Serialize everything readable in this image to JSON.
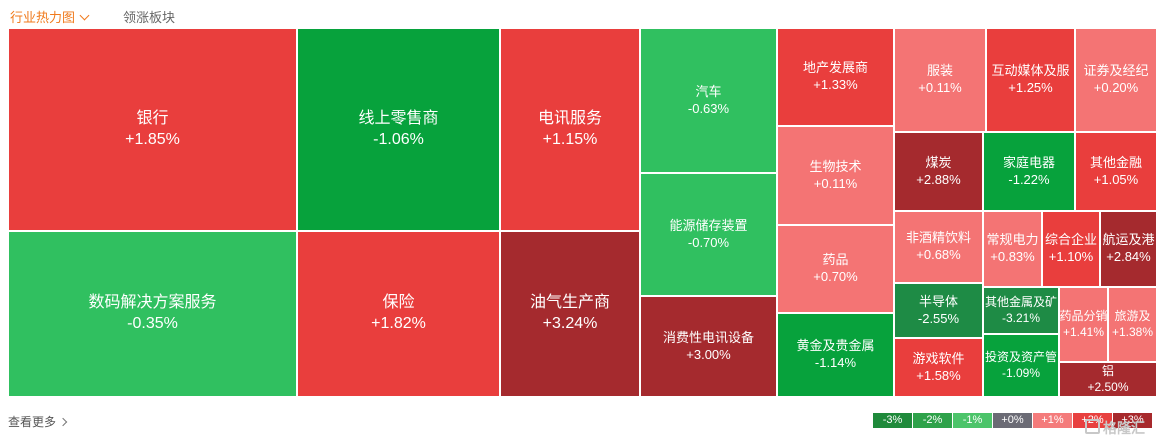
{
  "tabs": [
    {
      "label": "行业热力图",
      "active": true
    },
    {
      "label": "领涨板块",
      "active": false
    }
  ],
  "footer": {
    "more_label": "查看更多"
  },
  "legend": [
    {
      "label": "-3%",
      "color": "#1f8a3b"
    },
    {
      "label": "-2%",
      "color": "#2ea24a"
    },
    {
      "label": "-1%",
      "color": "#4cc46a"
    },
    {
      "label": "+0%",
      "color": "#6b6b75"
    },
    {
      "label": "+1%",
      "color": "#f47b7b"
    },
    {
      "label": "+2%",
      "color": "#e8403f"
    },
    {
      "label": "+3%",
      "color": "#a7292c"
    }
  ],
  "watermark": "格隆汇",
  "colors": {
    "up_light": "#f47474",
    "up": "#e93e3d",
    "up_dark": "#a52a2e",
    "down_light": "#30c060",
    "down": "#07a23c",
    "down_dark": "#1e8b45",
    "accent": "#f07a1c"
  },
  "sectors": [
    {
      "name": "银行",
      "change": "+1.85%"
    },
    {
      "name": "数码解决方案服务",
      "change": "-0.35%"
    },
    {
      "name": "线上零售商",
      "change": "-1.06%"
    },
    {
      "name": "保险",
      "change": "+1.82%"
    },
    {
      "name": "电讯服务",
      "change": "+1.15%"
    },
    {
      "name": "油气生产商",
      "change": "+3.24%"
    },
    {
      "name": "汽车",
      "change": "-0.63%"
    },
    {
      "name": "能源储存装置",
      "change": "-0.70%"
    },
    {
      "name": "消费性电讯设备",
      "change": "+3.00%"
    },
    {
      "name": "地产发展商",
      "change": "+1.33%"
    },
    {
      "name": "生物技术",
      "change": "+0.11%"
    },
    {
      "name": "药品",
      "change": "+0.70%"
    },
    {
      "name": "黄金及贵金属",
      "change": "-1.14%"
    },
    {
      "name": "服装",
      "change": "+0.11%"
    },
    {
      "name": "互动媒体及服",
      "change": "+1.25%"
    },
    {
      "name": "证券及经纪",
      "change": "+0.20%"
    },
    {
      "name": "煤炭",
      "change": "+2.88%"
    },
    {
      "name": "家庭电器",
      "change": "-1.22%"
    },
    {
      "name": "其他金融",
      "change": "+1.05%"
    },
    {
      "name": "非酒精饮料",
      "change": "+0.68%"
    },
    {
      "name": "常规电力",
      "change": "+0.83%"
    },
    {
      "name": "综合企业",
      "change": "+1.10%"
    },
    {
      "name": "航运及港",
      "change": "+2.84%"
    },
    {
      "name": "半导体",
      "change": "-2.55%"
    },
    {
      "name": "其他金属及矿",
      "change": "-3.21%"
    },
    {
      "name": "药品分销",
      "change": "+1.41%"
    },
    {
      "name": "旅游及",
      "change": "+1.38%"
    },
    {
      "name": "游戏软件",
      "change": "+1.58%"
    },
    {
      "name": "投资及资产管",
      "change": "-1.09%"
    },
    {
      "name": "铝",
      "change": "+2.50%"
    }
  ]
}
